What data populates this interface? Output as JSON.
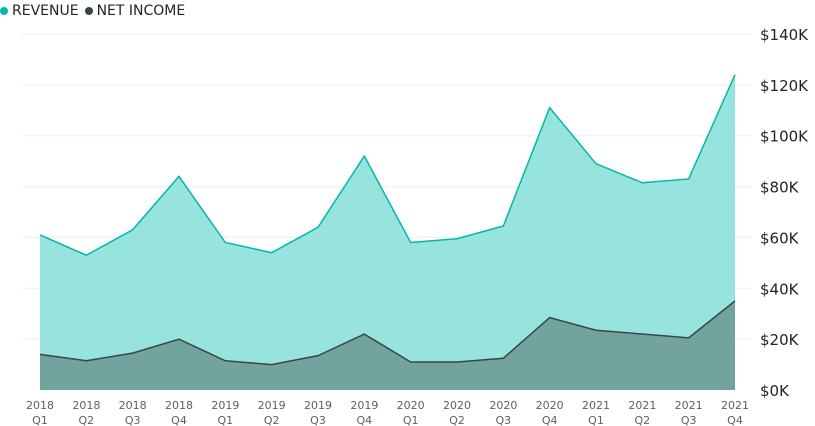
{
  "legend": {
    "items": [
      {
        "label": "REVENUE",
        "color": "#01B8AA"
      },
      {
        "label": "NET INCOME",
        "color": "#374649"
      }
    ]
  },
  "colors": {
    "revenue_line": "#01B8AA",
    "revenue_fill": "#97E3DD",
    "income_line": "#374649",
    "income_fill": "#73A39D",
    "grid": "#eeeeee",
    "axis_text": "#252423",
    "x_text": "#605E5C"
  },
  "chart_data": {
    "type": "area",
    "categories": [
      [
        "2018",
        "Q1"
      ],
      [
        "2018",
        "Q2"
      ],
      [
        "2018",
        "Q3"
      ],
      [
        "2018",
        "Q4"
      ],
      [
        "2019",
        "Q1"
      ],
      [
        "2019",
        "Q2"
      ],
      [
        "2019",
        "Q3"
      ],
      [
        "2019",
        "Q4"
      ],
      [
        "2020",
        "Q1"
      ],
      [
        "2020",
        "Q2"
      ],
      [
        "2020",
        "Q3"
      ],
      [
        "2020",
        "Q4"
      ],
      [
        "2021",
        "Q1"
      ],
      [
        "2021",
        "Q2"
      ],
      [
        "2021",
        "Q3"
      ],
      [
        "2021",
        "Q4"
      ]
    ],
    "series": [
      {
        "name": "REVENUE",
        "values": [
          61000,
          53000,
          63000,
          84000,
          58000,
          54000,
          64000,
          92000,
          58000,
          59500,
          64500,
          111000,
          89000,
          81500,
          83000,
          124000
        ]
      },
      {
        "name": "NET INCOME",
        "values": [
          14000,
          11500,
          14500,
          20000,
          11500,
          10000,
          13500,
          22000,
          11000,
          11000,
          12500,
          28500,
          23500,
          22000,
          20500,
          35000
        ]
      }
    ],
    "ylim": [
      0,
      140000
    ],
    "yticks": [
      0,
      20000,
      40000,
      60000,
      80000,
      100000,
      120000,
      140000
    ],
    "ytick_labels": [
      "$0K",
      "$20K",
      "$40K",
      "$60K",
      "$80K",
      "$100K",
      "$120K",
      "$140K"
    ],
    "y_axis_position": "right",
    "grid": true,
    "legend_position": "top-left",
    "title": "",
    "xlabel": "",
    "ylabel": ""
  }
}
